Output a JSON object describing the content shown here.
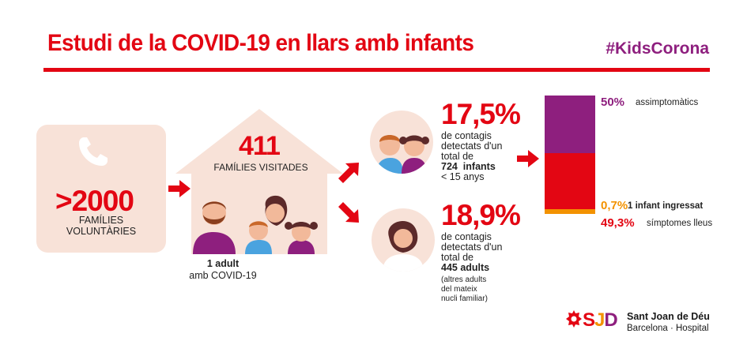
{
  "header": {
    "title": "Estudi de la COVID-19 en llars amb infants",
    "hashtag": "#KidsCorona"
  },
  "volunteers": {
    "value": ">2000",
    "label_line1": "FAMÍLIES",
    "label_line2": "VOLUNTÀRIES",
    "icon": "phone-icon"
  },
  "visited": {
    "value": "411",
    "label": "FAMÍLIES VISITADES",
    "adult_line1": "1 adult",
    "adult_line2": "amb COVID-19",
    "icon": "house-icon"
  },
  "children": {
    "value": "17,5%",
    "line1": "de contagis",
    "line2": "detectats d'un",
    "line3": "total de",
    "bold_line": "724  infants",
    "line5": "< 15 anys"
  },
  "adults": {
    "value": "18,9%",
    "line1": "de contagis",
    "line2": "detectats d'un",
    "line3": "total de",
    "bold_line": "445 adults",
    "note1": "(altres adults",
    "note2": "del mateix",
    "note3": "nucli familiar)"
  },
  "breakdown": {
    "segments": [
      {
        "pct": "50%",
        "label": "assimptomàtics",
        "value": 50,
        "color": "#8e1f7e"
      },
      {
        "pct": "49,3%",
        "label": "símptomes lleus",
        "value": 49.3,
        "color": "#e30613"
      },
      {
        "pct": "0,7%",
        "label": "1 infant ingressat",
        "value": 0.7,
        "color": "#f39200"
      }
    ]
  },
  "colors": {
    "red": "#e30613",
    "purple": "#8e1f7e",
    "orange": "#f39200",
    "peach": "#f8e2d8"
  },
  "logo": {
    "s": "S",
    "j": "J",
    "d": "D",
    "line1": "Sant Joan de Déu",
    "line2": "Barcelona · Hospital"
  }
}
